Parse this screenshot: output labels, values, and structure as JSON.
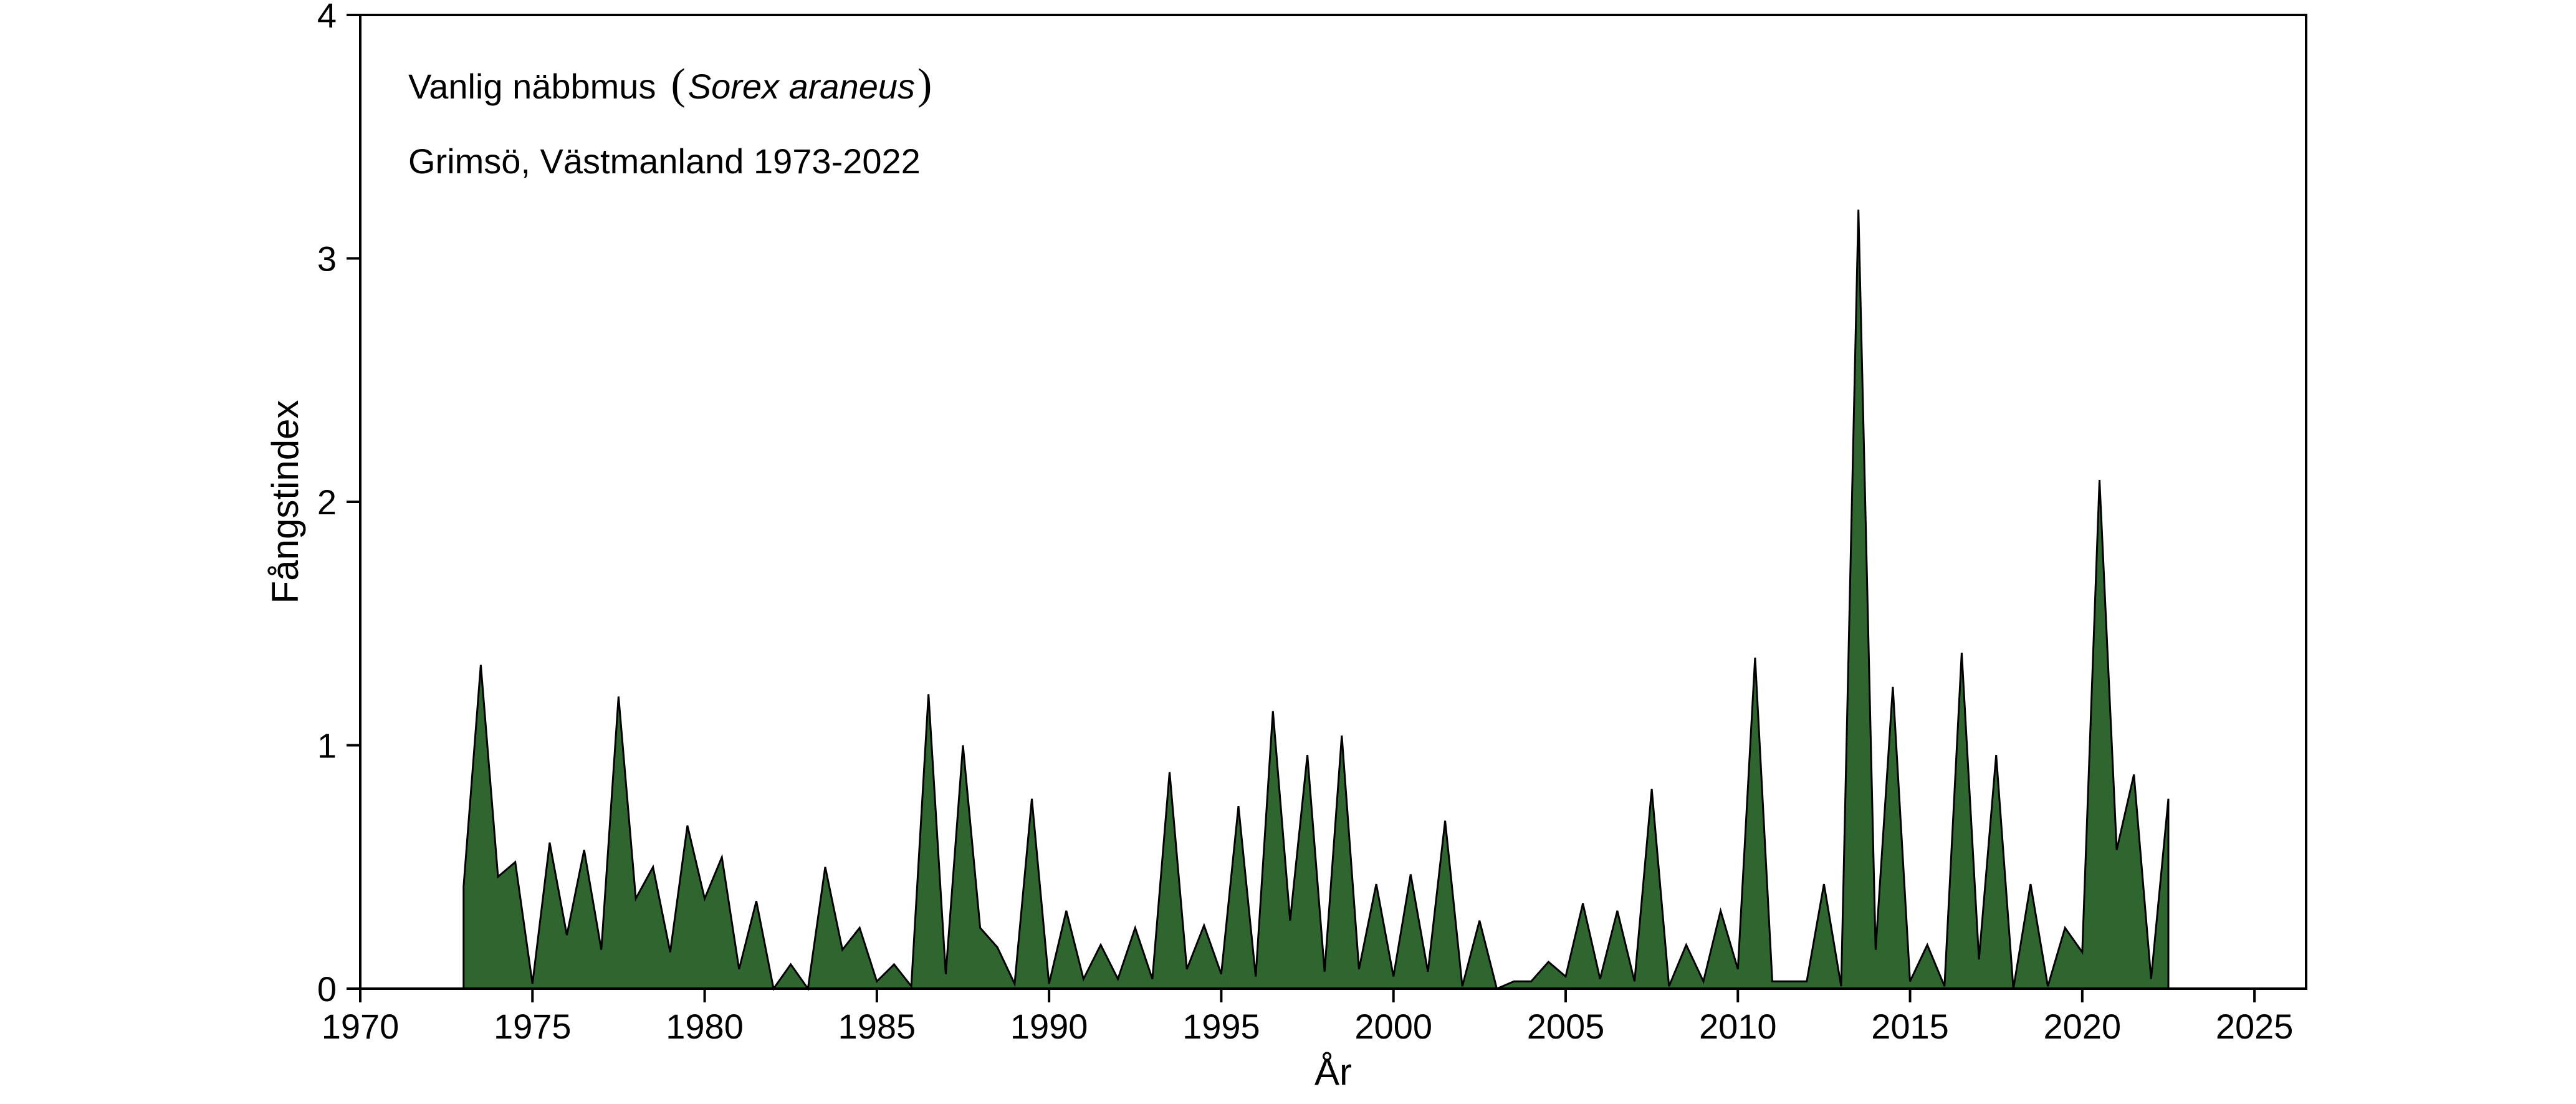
{
  "chart_data": {
    "type": "area",
    "title": "",
    "annotation": {
      "common_name": "Vanlig näbbmus",
      "paren_open": "(",
      "scientific_name": "Sorex araneus",
      "paren_close": ")",
      "location": "Grimsö, Västmanland 1973-2022"
    },
    "xlabel": "År",
    "ylabel": "Fångstindex",
    "xlim": [
      1970,
      2026.5
    ],
    "ylim": [
      0,
      4
    ],
    "xticks": [
      1970,
      1975,
      1980,
      1985,
      1990,
      1995,
      2000,
      2005,
      2010,
      2015,
      2020,
      2025
    ],
    "yticks": [
      0,
      1,
      2,
      3,
      4
    ],
    "grid": false,
    "fill_color": "#2f6630",
    "line_color": "#000000",
    "series": [
      {
        "x": [
          1973.0,
          1973.5,
          1974.0,
          1974.5,
          1975.0,
          1975.5,
          1976.0,
          1976.5,
          1977.0,
          1977.5,
          1978.0,
          1978.5,
          1979.0,
          1979.5,
          1980.0,
          1980.5,
          1981.0,
          1981.5,
          1982.0,
          1982.5,
          1983.0,
          1983.5,
          1984.0,
          1984.5,
          1985.0,
          1985.5,
          1986.0,
          1986.5,
          1987.0,
          1987.5,
          1988.0,
          1988.5,
          1989.0,
          1989.5,
          1990.0,
          1990.5,
          1991.0,
          1991.5,
          1992.0,
          1992.5,
          1993.0,
          1993.5,
          1994.0,
          1994.5,
          1995.0,
          1995.5,
          1996.0,
          1996.5,
          1997.0,
          1997.5,
          1998.0,
          1998.5,
          1999.0,
          1999.5,
          2000.0,
          2000.5,
          2001.0,
          2001.5,
          2002.0,
          2002.5,
          2003.0,
          2003.5,
          2004.0,
          2004.5,
          2005.0,
          2005.5,
          2006.0,
          2006.5,
          2007.0,
          2007.5,
          2008.0,
          2008.5,
          2009.0,
          2009.5,
          2010.0,
          2010.5,
          2011.0,
          2011.5,
          2012.0,
          2012.5,
          2013.0,
          2013.5,
          2014.0,
          2014.5,
          2015.0,
          2015.5,
          2016.0,
          2016.5,
          2017.0,
          2017.5,
          2018.0,
          2018.5,
          2019.0,
          2019.5,
          2020.0,
          2020.5,
          2021.0,
          2021.5,
          2022.0,
          2022.5
        ],
        "values": [
          0.42,
          1.33,
          0.46,
          0.52,
          0.02,
          0.6,
          0.22,
          0.57,
          0.16,
          1.2,
          0.37,
          0.5,
          0.15,
          0.67,
          0.37,
          0.54,
          0.08,
          0.36,
          0.0,
          0.1,
          0.0,
          0.5,
          0.16,
          0.25,
          0.03,
          0.1,
          0.01,
          1.21,
          0.06,
          1.0,
          0.25,
          0.17,
          0.02,
          0.78,
          0.02,
          0.32,
          0.04,
          0.18,
          0.04,
          0.25,
          0.04,
          0.89,
          0.08,
          0.26,
          0.06,
          0.75,
          0.05,
          1.14,
          0.28,
          0.96,
          0.07,
          1.04,
          0.08,
          0.43,
          0.05,
          0.47,
          0.07,
          0.69,
          0.01,
          0.28,
          0.0,
          0.03,
          0.03,
          0.11,
          0.05,
          0.35,
          0.04,
          0.32,
          0.03,
          0.82,
          0.01,
          0.18,
          0.03,
          0.32,
          0.08,
          1.36,
          0.03,
          0.03,
          0.03,
          0.43,
          0.01,
          3.2,
          0.16,
          1.24,
          0.03,
          0.18,
          0.01,
          1.38,
          0.12,
          0.96,
          0.0,
          0.43,
          0.01,
          0.25,
          0.15,
          2.09,
          0.57,
          0.88,
          0.04,
          0.78
        ]
      }
    ]
  }
}
